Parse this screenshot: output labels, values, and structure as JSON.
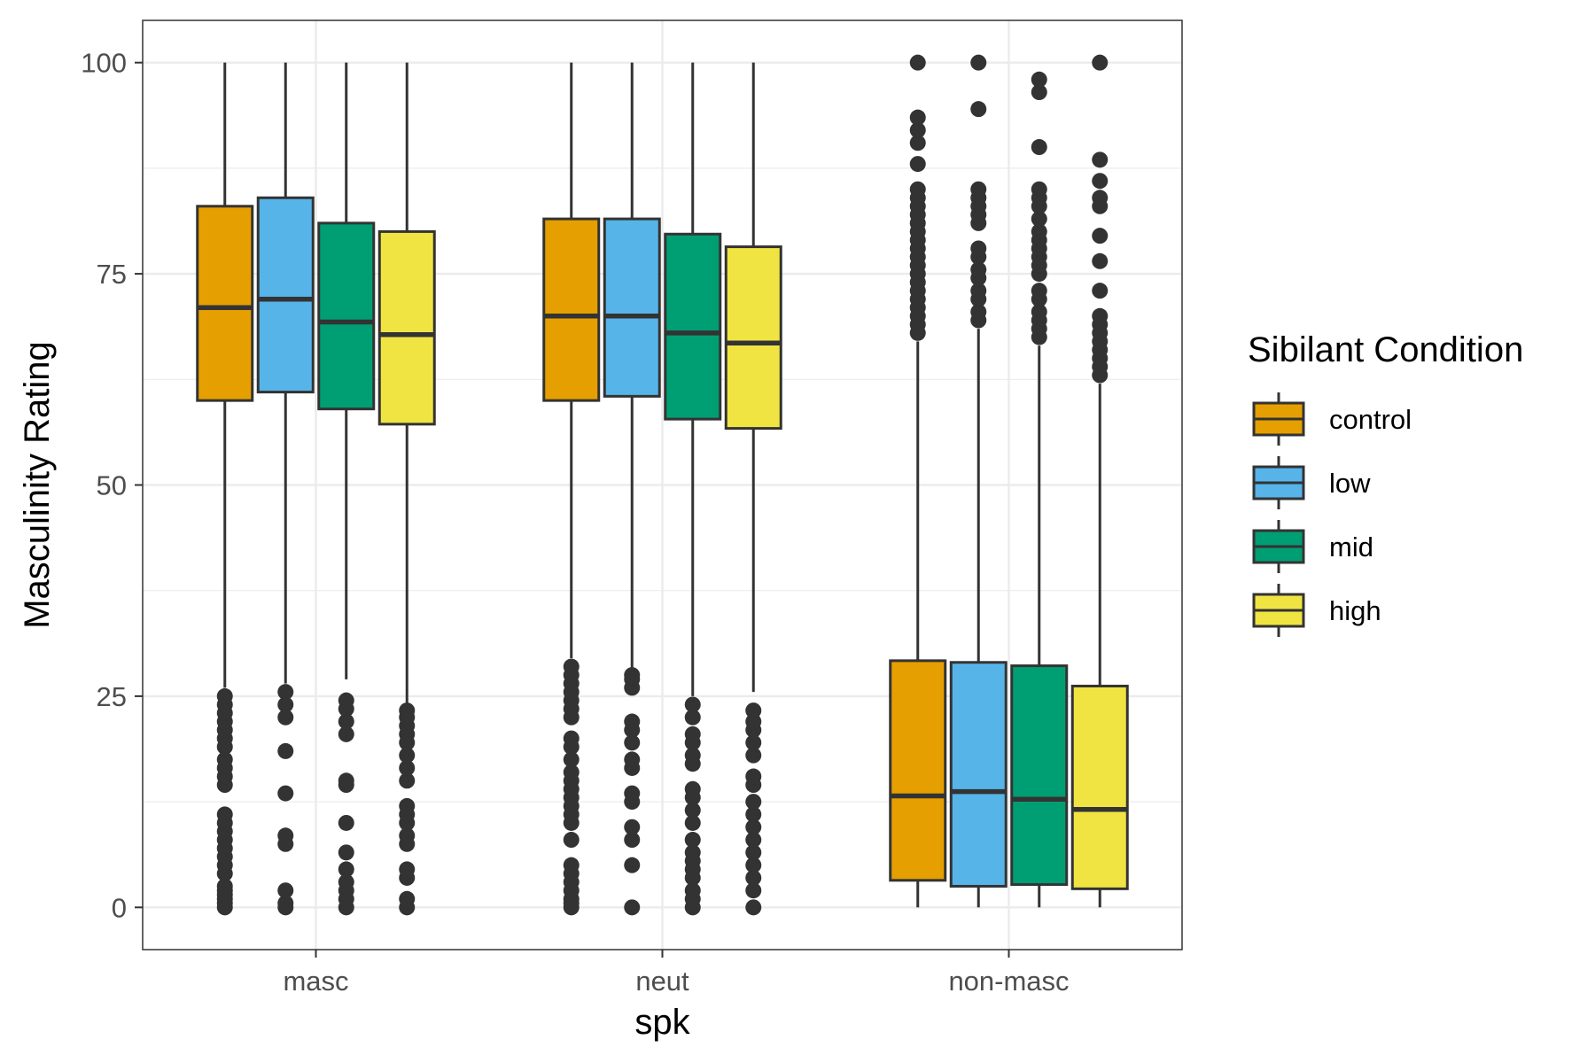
{
  "chart_data": {
    "type": "boxplot",
    "title": "",
    "xlabel": "spk",
    "ylabel": "Masculinity Rating",
    "categories": [
      "masc",
      "neut",
      "non-masc"
    ],
    "ylim": [
      -5,
      105
    ],
    "yticks": [
      0,
      25,
      50,
      75,
      100
    ],
    "grid": true,
    "legend": {
      "title": "Sibilant Condition",
      "position": "right"
    },
    "series": [
      {
        "name": "control",
        "color": "#E69F00",
        "boxes": [
          {
            "whisker_low": 26,
            "q1": 60,
            "median": 71,
            "q3": 83,
            "whisker_high": 100,
            "outliers": [
              0,
              0.5,
              1,
              1.5,
              2,
              2.5,
              4,
              5,
              6,
              7,
              8,
              9,
              10,
              11,
              14.5,
              15.5,
              16.5,
              17.5,
              19,
              20,
              21,
              22,
              23,
              24,
              25
            ]
          },
          {
            "whisker_low": 29.5,
            "q1": 60,
            "median": 70,
            "q3": 81.5,
            "whisker_high": 100,
            "outliers": [
              0,
              0.5,
              1,
              2,
              3,
              4,
              5,
              8,
              10,
              11,
              12,
              13,
              14,
              15,
              16,
              17.5,
              19,
              20,
              22.5,
              23.5,
              24.5,
              25.5,
              26.5,
              27.5,
              28.5
            ]
          },
          {
            "whisker_low": 0,
            "q1": 3.2,
            "median": 13.2,
            "q3": 29.2,
            "whisker_high": 67,
            "outliers": [
              68,
              69,
              70,
              71,
              72,
              73,
              74,
              75,
              76,
              77,
              78,
              79,
              80,
              81,
              82,
              83,
              84,
              85,
              88,
              90.5,
              92,
              93.5,
              100
            ]
          }
        ]
      },
      {
        "name": "low",
        "color": "#56B4E9",
        "boxes": [
          {
            "whisker_low": 26.5,
            "q1": 61,
            "median": 72,
            "q3": 84,
            "whisker_high": 100,
            "outliers": [
              0,
              0.5,
              2,
              7.5,
              8.5,
              13.5,
              18.5,
              22.5,
              24,
              25.5
            ]
          },
          {
            "whisker_low": 28,
            "q1": 60.5,
            "median": 70,
            "q3": 81.5,
            "whisker_high": 100,
            "outliers": [
              0,
              5,
              8,
              9.5,
              12.5,
              13.5,
              16.5,
              17.5,
              19.5,
              21,
              22,
              26,
              27,
              27.5
            ]
          },
          {
            "whisker_low": 0,
            "q1": 2.5,
            "median": 13.7,
            "q3": 29,
            "whisker_high": 68.5,
            "outliers": [
              69.5,
              70.5,
              72,
              73,
              74.5,
              75.5,
              77,
              78,
              81,
              82,
              83,
              84,
              85,
              94.5,
              100
            ]
          }
        ]
      },
      {
        "name": "mid",
        "color": "#009E73",
        "boxes": [
          {
            "whisker_low": 27,
            "q1": 59,
            "median": 69.3,
            "q3": 81,
            "whisker_high": 100,
            "outliers": [
              0,
              1,
              2,
              3,
              4.5,
              6.5,
              10,
              14.5,
              15,
              20.5,
              22,
              23.5,
              24.5
            ]
          },
          {
            "whisker_low": 25,
            "q1": 57.8,
            "median": 68,
            "q3": 79.7,
            "whisker_high": 100,
            "outliers": [
              0,
              1,
              2,
              3.5,
              4.5,
              5.5,
              6.5,
              8,
              10,
              11.5,
              13,
              14,
              17,
              18,
              19.5,
              20.5,
              22.5,
              24
            ]
          },
          {
            "whisker_low": 0,
            "q1": 2.7,
            "median": 12.8,
            "q3": 28.6,
            "whisker_high": 66.5,
            "outliers": [
              67.5,
              68.5,
              69.5,
              70.5,
              72,
              73,
              75,
              76,
              77,
              78,
              79,
              80,
              81.5,
              83,
              84,
              85,
              90,
              96.5,
              98
            ]
          }
        ]
      },
      {
        "name": "high",
        "color": "#F0E442",
        "boxes": [
          {
            "whisker_low": 24,
            "q1": 57.2,
            "median": 67.8,
            "q3": 80,
            "whisker_high": 100,
            "outliers": [
              0,
              1,
              3.5,
              4.5,
              7.5,
              8.5,
              10,
              11,
              12,
              15,
              16.5,
              18,
              19.5,
              20.5,
              21.5,
              22.5,
              23.3
            ]
          },
          {
            "whisker_low": 25.5,
            "q1": 56.7,
            "median": 66.8,
            "q3": 78.2,
            "whisker_high": 100,
            "outliers": [
              0,
              2,
              3.5,
              5,
              6.5,
              8,
              9.5,
              11,
              12.5,
              14.5,
              15.5,
              18,
              19.5,
              21,
              22,
              23.3
            ]
          },
          {
            "whisker_low": 0,
            "q1": 2.2,
            "median": 11.6,
            "q3": 26.2,
            "whisker_high": 62,
            "outliers": [
              63,
              64,
              65,
              66,
              67,
              68,
              69,
              70,
              73,
              76.5,
              79.5,
              83,
              84,
              86,
              88.5,
              100
            ]
          }
        ]
      }
    ]
  }
}
